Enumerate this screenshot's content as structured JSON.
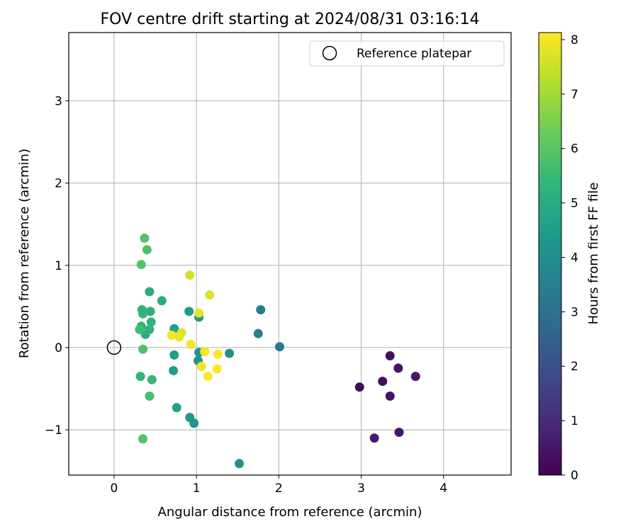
{
  "chart_data": {
    "type": "scatter",
    "title": "FOV centre drift starting at 2024/08/31 03:16:14",
    "xlabel": "Angular distance from reference (arcmin)",
    "ylabel": "Rotation from reference (arcmin)",
    "xlim": [
      -0.55,
      4.82
    ],
    "ylim": [
      -1.55,
      3.83
    ],
    "xticks": [
      0,
      1,
      2,
      3,
      4
    ],
    "yticks": [
      -1,
      0,
      1,
      2,
      3
    ],
    "xtick_labels": [
      "0",
      "1",
      "2",
      "3",
      "4"
    ],
    "ytick_labels": [
      "−1",
      "0",
      "1",
      "2",
      "3"
    ],
    "grid": true,
    "legend": {
      "position": "top-right",
      "entries": [
        {
          "label": "Reference platepar",
          "marker": "open-circle"
        }
      ]
    },
    "reference_point": {
      "x": 0,
      "y": 0
    },
    "colorbar": {
      "label": "Hours from first FF file",
      "range": [
        0,
        8.13
      ],
      "ticks": [
        0,
        1,
        2,
        3,
        4,
        5,
        6,
        7,
        8
      ],
      "tick_labels": [
        "0",
        "1",
        "2",
        "3",
        "4",
        "5",
        "6",
        "7",
        "8"
      ],
      "colormap": "viridis"
    },
    "points": [
      {
        "x": 2.98,
        "y": -0.48,
        "hours": 0.2
      },
      {
        "x": 3.26,
        "y": -0.41,
        "hours": 0.3
      },
      {
        "x": 3.35,
        "y": -0.1,
        "hours": 0.3
      },
      {
        "x": 3.45,
        "y": -0.25,
        "hours": 0.4
      },
      {
        "x": 3.35,
        "y": -0.59,
        "hours": 0.4
      },
      {
        "x": 3.66,
        "y": -0.35,
        "hours": 0.5
      },
      {
        "x": 3.46,
        "y": -1.03,
        "hours": 0.5
      },
      {
        "x": 3.16,
        "y": -1.1,
        "hours": 0.6
      },
      {
        "x": 2.01,
        "y": 0.01,
        "hours": 3.3
      },
      {
        "x": 1.78,
        "y": 0.46,
        "hours": 3.4
      },
      {
        "x": 1.75,
        "y": 0.17,
        "hours": 3.5
      },
      {
        "x": 1.4,
        "y": -0.07,
        "hours": 4.0
      },
      {
        "x": 1.52,
        "y": -1.41,
        "hours": 4.1
      },
      {
        "x": 1.03,
        "y": 0.37,
        "hours": 4.2
      },
      {
        "x": 1.03,
        "y": -0.06,
        "hours": 4.3
      },
      {
        "x": 1.02,
        "y": -0.16,
        "hours": 4.3
      },
      {
        "x": 0.97,
        "y": -0.92,
        "hours": 4.2
      },
      {
        "x": 0.92,
        "y": -0.85,
        "hours": 4.3
      },
      {
        "x": 0.91,
        "y": 0.44,
        "hours": 4.5
      },
      {
        "x": 0.73,
        "y": 0.23,
        "hours": 4.6
      },
      {
        "x": 0.73,
        "y": -0.09,
        "hours": 4.5
      },
      {
        "x": 0.72,
        "y": -0.28,
        "hours": 4.5
      },
      {
        "x": 0.76,
        "y": -0.73,
        "hours": 4.6
      },
      {
        "x": 0.58,
        "y": 0.57,
        "hours": 5.0
      },
      {
        "x": 0.43,
        "y": 0.68,
        "hours": 5.0
      },
      {
        "x": 0.44,
        "y": 0.44,
        "hours": 5.1
      },
      {
        "x": 0.45,
        "y": 0.31,
        "hours": 5.2
      },
      {
        "x": 0.43,
        "y": 0.22,
        "hours": 5.2
      },
      {
        "x": 0.38,
        "y": 0.16,
        "hours": 5.1
      },
      {
        "x": 0.35,
        "y": 0.41,
        "hours": 5.3
      },
      {
        "x": 0.34,
        "y": 0.46,
        "hours": 5.2
      },
      {
        "x": 0.33,
        "y": 0.26,
        "hours": 5.3
      },
      {
        "x": 0.31,
        "y": 0.22,
        "hours": 5.6
      },
      {
        "x": 0.46,
        "y": -0.39,
        "hours": 5.4
      },
      {
        "x": 0.32,
        "y": -0.35,
        "hours": 5.3
      },
      {
        "x": 0.43,
        "y": -0.59,
        "hours": 5.7
      },
      {
        "x": 0.35,
        "y": -0.02,
        "hours": 5.8
      },
      {
        "x": 0.4,
        "y": 1.19,
        "hours": 5.8
      },
      {
        "x": 0.37,
        "y": 1.33,
        "hours": 5.9
      },
      {
        "x": 0.33,
        "y": 1.01,
        "hours": 5.9
      },
      {
        "x": 0.35,
        "y": -1.11,
        "hours": 5.9
      },
      {
        "x": 0.92,
        "y": 0.88,
        "hours": 7.6
      },
      {
        "x": 1.16,
        "y": 0.64,
        "hours": 7.7
      },
      {
        "x": 1.03,
        "y": 0.42,
        "hours": 7.8
      },
      {
        "x": 0.82,
        "y": 0.18,
        "hours": 7.7
      },
      {
        "x": 0.79,
        "y": 0.13,
        "hours": 7.9
      },
      {
        "x": 0.7,
        "y": 0.15,
        "hours": 8.0
      },
      {
        "x": 0.93,
        "y": 0.04,
        "hours": 8.0
      },
      {
        "x": 1.1,
        "y": -0.05,
        "hours": 8.0
      },
      {
        "x": 1.26,
        "y": -0.08,
        "hours": 8.1
      },
      {
        "x": 1.06,
        "y": -0.23,
        "hours": 8.0
      },
      {
        "x": 1.25,
        "y": -0.26,
        "hours": 8.1
      },
      {
        "x": 1.14,
        "y": -0.35,
        "hours": 8.1
      }
    ]
  }
}
